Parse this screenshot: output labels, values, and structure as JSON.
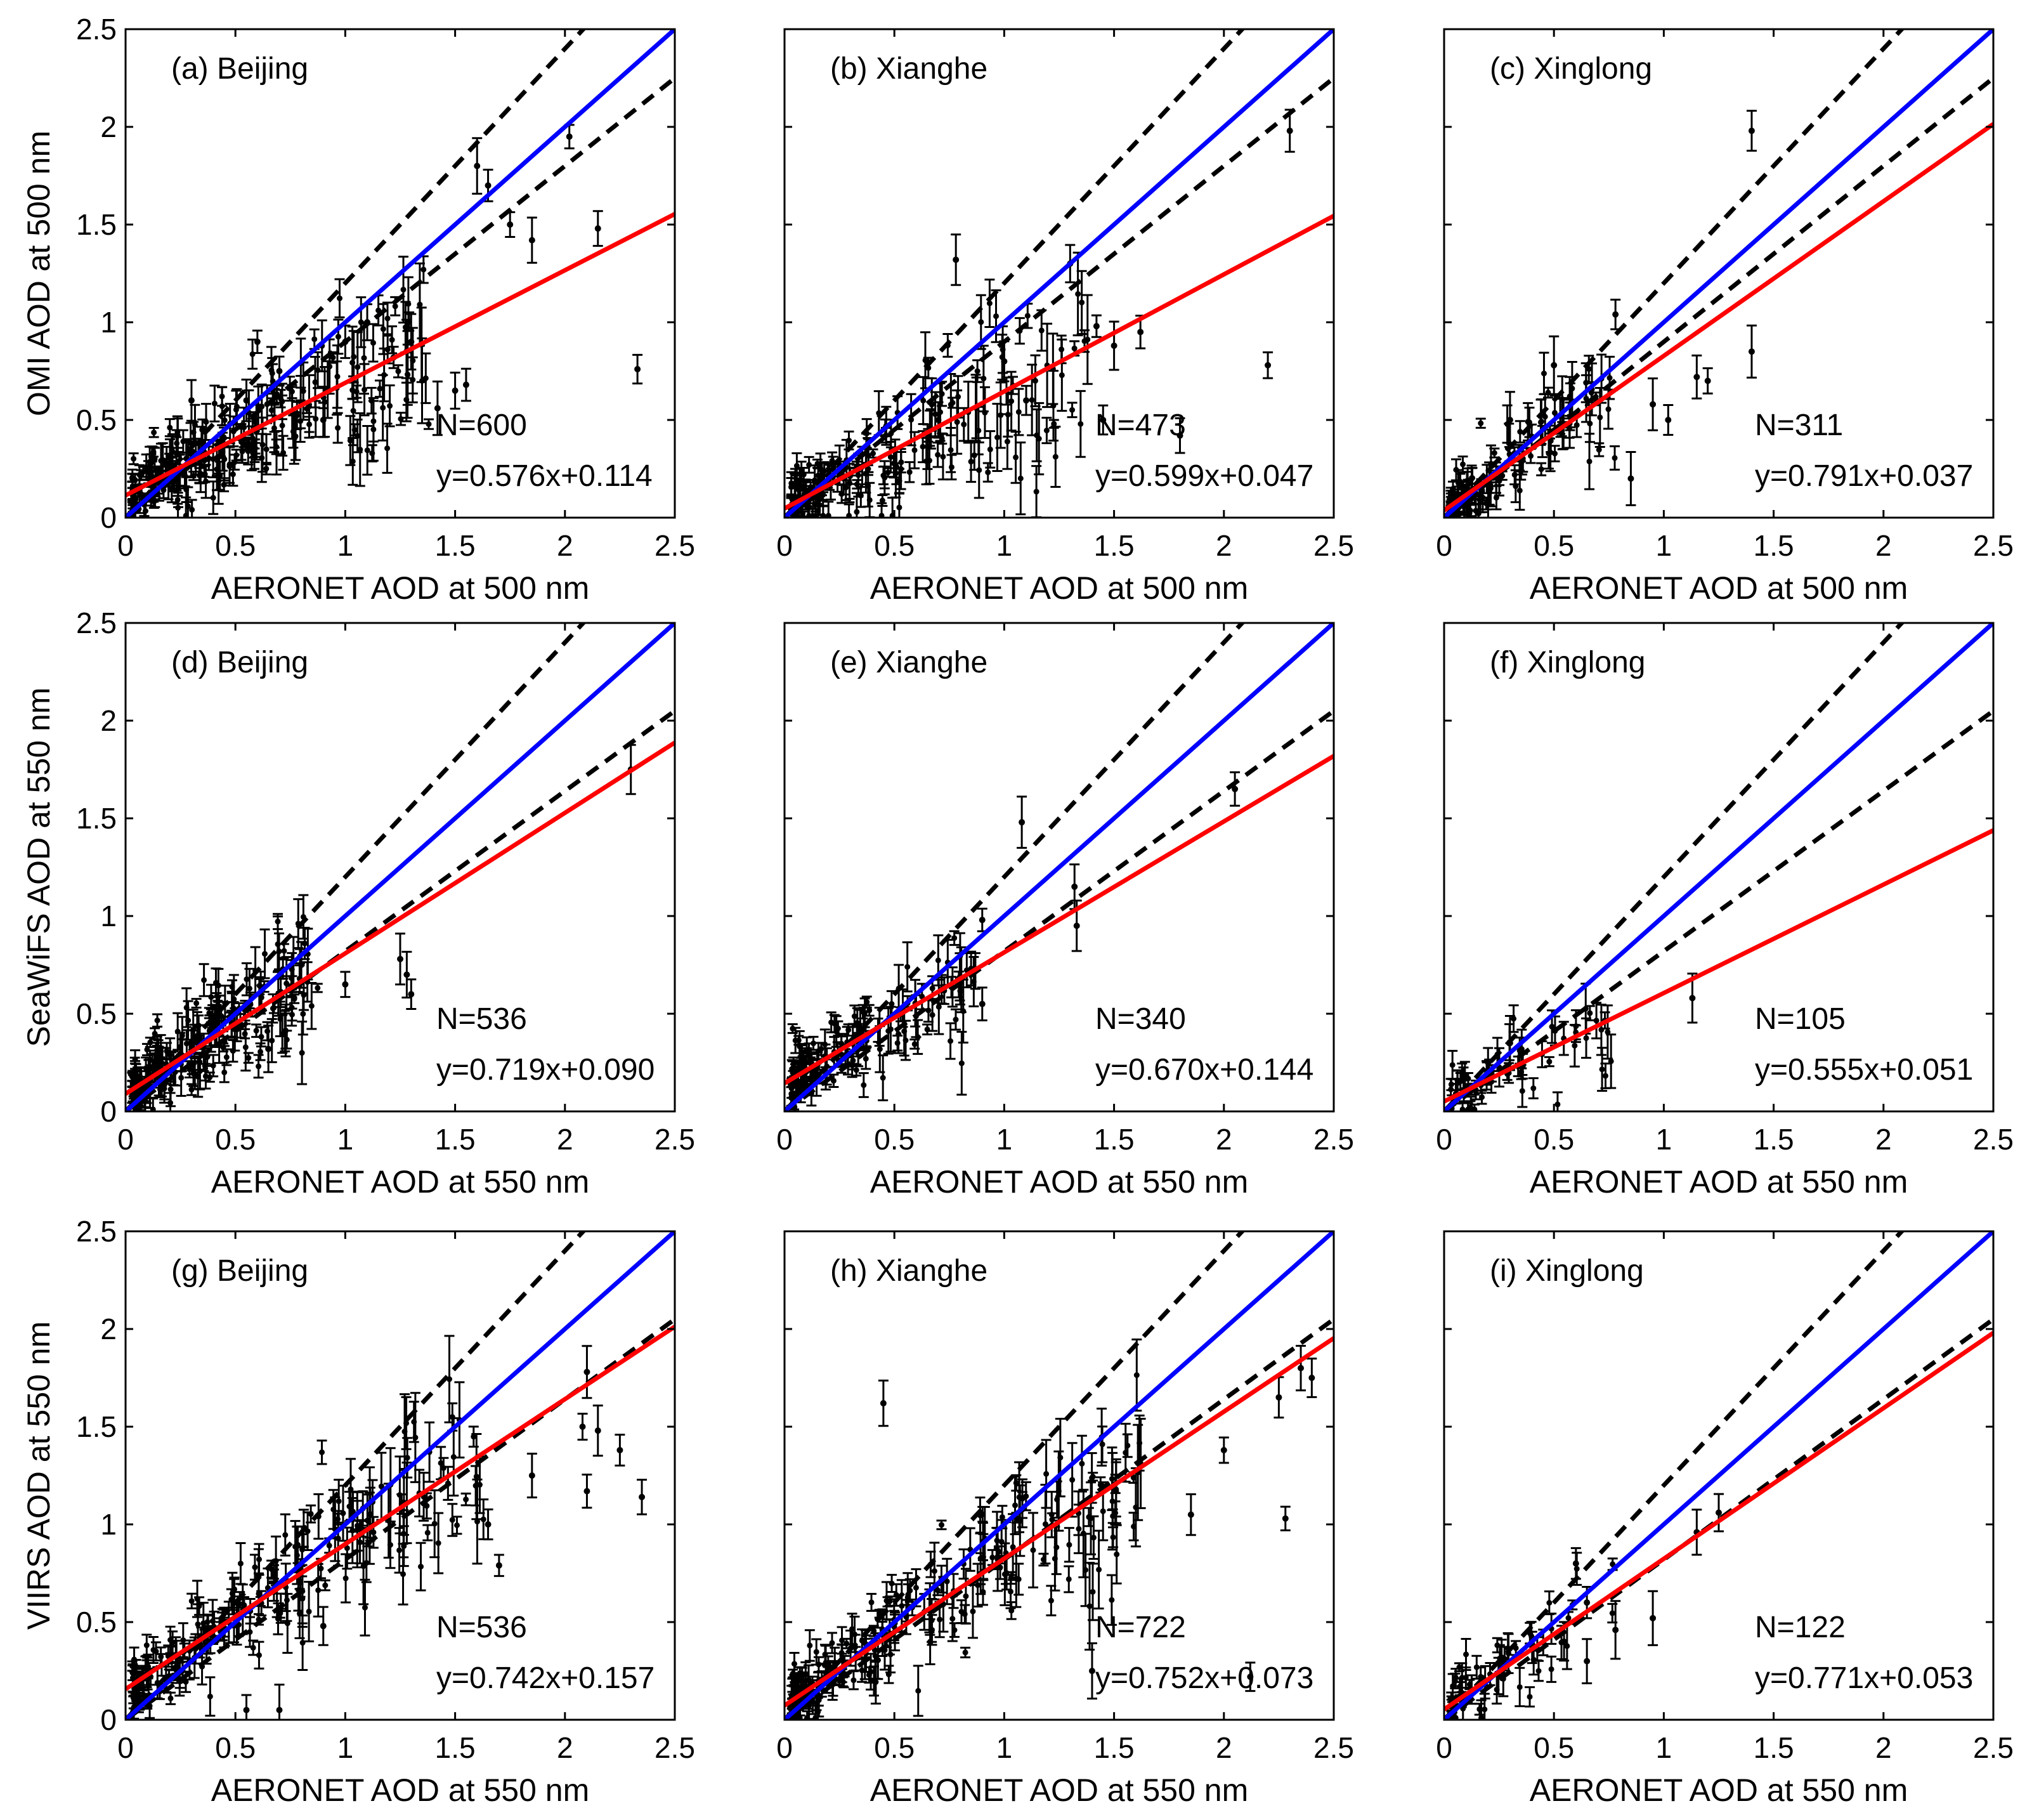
{
  "figure": {
    "panels": [
      {
        "label": "(a) Beijing",
        "n_text": "N=600",
        "eq_text": "y=0.576x+0.114",
        "slope": 0.576,
        "intercept": 0.114,
        "ylabel": "OMI AOD at 500 nm",
        "xlabel": "AERONET AOD at 500 nm",
        "ee_lines": {
          "upper": 1.2,
          "lower": 0.9
        },
        "points": [
          [
            0.35,
            0.45
          ],
          [
            0.55,
            0.6
          ],
          [
            0.7,
            0.75
          ],
          [
            1.0,
            0.9
          ],
          [
            1.1,
            1.0
          ],
          [
            1.3,
            0.9
          ],
          [
            1.6,
            1.8
          ],
          [
            1.65,
            1.7
          ],
          [
            1.75,
            1.5
          ],
          [
            2.02,
            1.95
          ],
          [
            2.15,
            1.48
          ],
          [
            2.33,
            0.76
          ],
          [
            1.85,
            1.42
          ],
          [
            1.5,
            0.65
          ],
          [
            1.55,
            0.68
          ],
          [
            1.42,
            0.56
          ],
          [
            1.22,
            0.82
          ],
          [
            0.9,
            0.5
          ],
          [
            0.3,
            0.6
          ],
          [
            0.6,
            0.9
          ]
        ]
      },
      {
        "label": "(b) Xianghe",
        "n_text": "N=473",
        "eq_text": "y=0.599x+0.047",
        "slope": 0.599,
        "intercept": 0.047,
        "ylabel": "",
        "xlabel": "AERONET AOD at 500 nm",
        "ee_lines": {
          "upper": 1.2,
          "lower": 0.9
        },
        "points": [
          [
            0.78,
            1.32
          ],
          [
            1.0,
            0.8
          ],
          [
            1.3,
            1.3
          ],
          [
            1.42,
            0.98
          ],
          [
            1.5,
            0.88
          ],
          [
            1.62,
            0.95
          ],
          [
            2.2,
            0.78
          ],
          [
            2.3,
            1.98
          ],
          [
            1.45,
            0.5
          ],
          [
            1.8,
            0.42
          ],
          [
            1.1,
            0.6
          ],
          [
            0.7,
            0.5
          ]
        ]
      },
      {
        "label": "(c) Xinglong",
        "n_text": "N=311",
        "eq_text": "y=0.791x+0.037",
        "slope": 0.791,
        "intercept": 0.037,
        "ylabel": "",
        "xlabel": "AERONET AOD at 500 nm",
        "ee_lines": {
          "upper": 1.2,
          "lower": 0.9
        },
        "points": [
          [
            0.5,
            0.78
          ],
          [
            0.78,
            1.04
          ],
          [
            0.95,
            0.58
          ],
          [
            1.02,
            0.5
          ],
          [
            1.15,
            0.72
          ],
          [
            1.2,
            0.7
          ],
          [
            1.4,
            1.98
          ],
          [
            1.4,
            0.85
          ],
          [
            0.85,
            0.2
          ],
          [
            0.3,
            0.5
          ]
        ]
      },
      {
        "label": "(d) Beijing",
        "n_text": "N=536",
        "eq_text": "y=0.719x+0.090",
        "slope": 0.719,
        "intercept": 0.09,
        "ylabel": "SeaWiFS AOD at 550 nm",
        "xlabel": "AERONET AOD at 550 nm",
        "ee_lines": {
          "upper": 1.2,
          "lower": 0.82
        },
        "points": [
          [
            0.8,
            0.75
          ],
          [
            1.0,
            0.65
          ],
          [
            1.25,
            0.78
          ],
          [
            1.28,
            0.7
          ],
          [
            1.3,
            0.6
          ],
          [
            2.3,
            1.75
          ],
          [
            0.65,
            0.32
          ]
        ]
      },
      {
        "label": "(e) Xianghe",
        "n_text": "N=340",
        "eq_text": "y=0.670x+0.144",
        "slope": 0.67,
        "intercept": 0.144,
        "ylabel": "",
        "xlabel": "AERONET AOD at 550 nm",
        "ee_lines": {
          "upper": 1.2,
          "lower": 0.82
        },
        "points": [
          [
            1.08,
            1.48
          ],
          [
            1.33,
            0.95
          ],
          [
            1.32,
            1.15
          ],
          [
            2.05,
            1.65
          ],
          [
            0.9,
            0.55
          ],
          [
            0.9,
            0.98
          ]
        ]
      },
      {
        "label": "(f) Xinglong",
        "n_text": "N=105",
        "eq_text": "y=0.555x+0.051",
        "slope": 0.555,
        "intercept": 0.051,
        "ylabel": "",
        "xlabel": "AERONET AOD at 550 nm",
        "ee_lines": {
          "upper": 1.2,
          "lower": 0.82
        },
        "points": [
          [
            1.13,
            0.58
          ],
          [
            0.3,
            0.35
          ],
          [
            0.2,
            0.25
          ]
        ]
      },
      {
        "label": "(g) Beijing",
        "n_text": "N=536",
        "eq_text": "y=0.742x+0.157",
        "slope": 0.742,
        "intercept": 0.157,
        "ylabel": "VIIRS AOD at 550 nm",
        "xlabel": "AERONET AOD at 550 nm",
        "ee_lines": {
          "upper": 1.2,
          "lower": 0.82
        },
        "points": [
          [
            2.1,
            1.78
          ],
          [
            2.08,
            1.5
          ],
          [
            2.15,
            1.48
          ],
          [
            2.25,
            1.38
          ],
          [
            2.35,
            1.14
          ],
          [
            2.1,
            1.17
          ],
          [
            1.85,
            1.25
          ],
          [
            1.7,
            0.79
          ],
          [
            1.65,
            1.0
          ],
          [
            0.9,
            0.48
          ],
          [
            0.55,
            0.05
          ],
          [
            0.7,
            0.05
          ]
        ]
      },
      {
        "label": "(h) Xianghe",
        "n_text": "N=722",
        "eq_text": "y=0.752x+0.073",
        "slope": 0.752,
        "intercept": 0.073,
        "ylabel": "",
        "xlabel": "AERONET AOD at 550 nm",
        "ee_lines": {
          "upper": 1.2,
          "lower": 0.82
        },
        "points": [
          [
            0.45,
            1.62
          ],
          [
            2.4,
            1.75
          ],
          [
            2.35,
            1.8
          ],
          [
            2.25,
            1.65
          ],
          [
            2.28,
            1.03
          ],
          [
            2.12,
            0.22
          ],
          [
            1.85,
            1.05
          ],
          [
            2.0,
            1.38
          ],
          [
            1.4,
            0.25
          ]
        ]
      },
      {
        "label": "(i) Xinglong",
        "n_text": "N=122",
        "eq_text": "y=0.771x+0.053",
        "slope": 0.771,
        "intercept": 0.053,
        "ylabel": "",
        "xlabel": "AERONET AOD at 550 nm",
        "ee_lines": {
          "upper": 1.2,
          "lower": 0.82
        },
        "points": [
          [
            1.25,
            1.06
          ],
          [
            1.15,
            0.96
          ],
          [
            0.95,
            0.52
          ],
          [
            0.78,
            0.46
          ],
          [
            0.65,
            0.6
          ],
          [
            0.6,
            0.8
          ],
          [
            0.65,
            0.3
          ]
        ]
      }
    ],
    "colors": {
      "one_to_one": "#0000ff",
      "fit": "#ff0000",
      "error_envelope": "#000000",
      "points": "#000000"
    }
  },
  "chart_data": [
    {
      "type": "scatter",
      "title": "(a) Beijing",
      "xlabel": "AERONET AOD at 500 nm",
      "ylabel": "OMI AOD at 500 nm",
      "xlim": [
        0,
        2.5
      ],
      "ylim": [
        0,
        2.5
      ],
      "xticks": [
        "0",
        "0.5",
        "1",
        "1.5",
        "2",
        "2.5"
      ],
      "yticks": [
        "0",
        "0.5",
        "1",
        "1.5",
        "2",
        "2.5"
      ],
      "N": 600,
      "fit": {
        "slope": 0.576,
        "intercept": 0.114
      },
      "series": [
        {
          "name": "fit",
          "equation": "y=0.576x+0.114"
        },
        {
          "name": "1:1"
        }
      ]
    },
    {
      "type": "scatter",
      "title": "(b) Xianghe",
      "xlabel": "AERONET AOD at 500 nm",
      "xlim": [
        0,
        2.5
      ],
      "ylim": [
        0,
        2.5
      ],
      "N": 473,
      "fit": {
        "slope": 0.599,
        "intercept": 0.047
      }
    },
    {
      "type": "scatter",
      "title": "(c) Xinglong",
      "xlabel": "AERONET AOD at 500 nm",
      "xlim": [
        0,
        2.5
      ],
      "ylim": [
        0,
        2.5
      ],
      "N": 311,
      "fit": {
        "slope": 0.791,
        "intercept": 0.037
      }
    },
    {
      "type": "scatter",
      "title": "(d) Beijing",
      "xlabel": "AERONET AOD at 550 nm",
      "ylabel": "SeaWiFS AOD at 550 nm",
      "xlim": [
        0,
        2.5
      ],
      "ylim": [
        0,
        2.5
      ],
      "N": 536,
      "fit": {
        "slope": 0.719,
        "intercept": 0.09
      }
    },
    {
      "type": "scatter",
      "title": "(e) Xianghe",
      "xlabel": "AERONET AOD at 550 nm",
      "xlim": [
        0,
        2.5
      ],
      "ylim": [
        0,
        2.5
      ],
      "N": 340,
      "fit": {
        "slope": 0.67,
        "intercept": 0.144
      }
    },
    {
      "type": "scatter",
      "title": "(f) Xinglong",
      "xlabel": "AERONET AOD at 550 nm",
      "xlim": [
        0,
        2.5
      ],
      "ylim": [
        0,
        2.5
      ],
      "N": 105,
      "fit": {
        "slope": 0.555,
        "intercept": 0.051
      }
    },
    {
      "type": "scatter",
      "title": "(g) Beijing",
      "xlabel": "AERONET AOD at 550 nm",
      "ylabel": "VIIRS AOD at 550 nm",
      "xlim": [
        0,
        2.5
      ],
      "ylim": [
        0,
        2.5
      ],
      "N": 536,
      "fit": {
        "slope": 0.742,
        "intercept": 0.157
      }
    },
    {
      "type": "scatter",
      "title": "(h) Xianghe",
      "xlabel": "AERONET AOD at 550 nm",
      "xlim": [
        0,
        2.5
      ],
      "ylim": [
        0,
        2.5
      ],
      "N": 722,
      "fit": {
        "slope": 0.752,
        "intercept": 0.073
      }
    },
    {
      "type": "scatter",
      "title": "(i) Xinglong",
      "xlabel": "AERONET AOD at 550 nm",
      "xlim": [
        0,
        2.5
      ],
      "ylim": [
        0,
        2.5
      ],
      "N": 122,
      "fit": {
        "slope": 0.771,
        "intercept": 0.053
      }
    }
  ],
  "axis": {
    "ticks": [
      "0",
      "0.5",
      "1",
      "1.5",
      "2",
      "2.5"
    ],
    "min": 0,
    "max": 2.5
  }
}
